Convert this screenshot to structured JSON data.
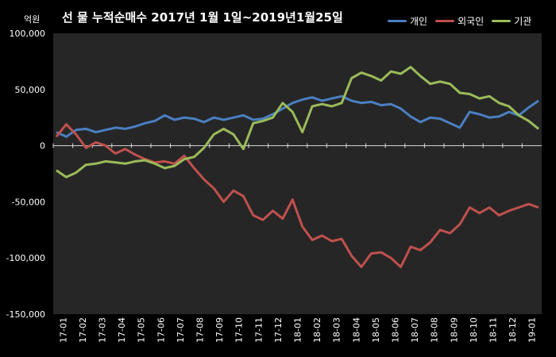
{
  "chart_data": {
    "type": "line",
    "title": "선 물 누적순매수 2017년 1월 1일~2019년1월25일",
    "unit": "억원",
    "ylim": [
      -150000,
      100000
    ],
    "yticks": [
      {
        "v": 100000,
        "label": "100,000"
      },
      {
        "v": 50000,
        "label": "50,000"
      },
      {
        "v": 0,
        "label": "0"
      },
      {
        "v": -50000,
        "label": "-50,000"
      },
      {
        "v": -100000,
        "label": "-100,000"
      },
      {
        "v": -150000,
        "label": "-150,000"
      }
    ],
    "xticks": [
      "17-01",
      "17-02",
      "17-03",
      "17-04",
      "17-05",
      "17-06",
      "17-07",
      "17-08",
      "17-09",
      "17-10",
      "17-11",
      "17-12",
      "18-01",
      "18-02",
      "18-03",
      "18-04",
      "18-05",
      "18-06",
      "18-07",
      "18-08",
      "18-09",
      "18-10",
      "18-11",
      "18-12",
      "19-01"
    ],
    "x": [
      "17-01a",
      "17-01b",
      "17-02a",
      "17-02b",
      "17-03a",
      "17-03b",
      "17-04a",
      "17-04b",
      "17-05a",
      "17-05b",
      "17-06a",
      "17-06b",
      "17-07a",
      "17-07b",
      "17-08a",
      "17-08b",
      "17-09a",
      "17-09b",
      "17-10a",
      "17-10b",
      "17-11a",
      "17-11b",
      "17-12a",
      "17-12b",
      "18-01a",
      "18-01b",
      "18-02a",
      "18-02b",
      "18-03a",
      "18-03b",
      "18-04a",
      "18-04b",
      "18-05a",
      "18-05b",
      "18-06a",
      "18-06b",
      "18-07a",
      "18-07b",
      "18-08a",
      "18-08b",
      "18-09a",
      "18-09b",
      "18-10a",
      "18-10b",
      "18-11a",
      "18-11b",
      "18-12a",
      "18-12b",
      "19-01a",
      "19-01b"
    ],
    "series": [
      {
        "name": "개인",
        "color": "#4a7fc1",
        "values": [
          12000,
          8000,
          14000,
          15000,
          12000,
          14000,
          16000,
          15000,
          17000,
          20000,
          22000,
          27000,
          23000,
          25000,
          24000,
          21000,
          25000,
          23000,
          25000,
          27000,
          23000,
          24000,
          28000,
          33000,
          38000,
          41000,
          43000,
          40000,
          42000,
          44000,
          40000,
          38000,
          39000,
          36000,
          37000,
          33000,
          26000,
          21000,
          25000,
          24000,
          20000,
          16000,
          30000,
          28000,
          25000,
          26000,
          30000,
          27000,
          34000,
          40000
        ]
      },
      {
        "name": "외국인",
        "color": "#c0504d",
        "values": [
          8000,
          19000,
          10000,
          -2000,
          3000,
          0,
          -7000,
          -3000,
          -8000,
          -12000,
          -15000,
          -14000,
          -16000,
          -9000,
          -20000,
          -30000,
          -38000,
          -50000,
          -40000,
          -45000,
          -62000,
          -66000,
          -58000,
          -65000,
          -48000,
          -72000,
          -84000,
          -80000,
          -85000,
          -83000,
          -98000,
          -108000,
          -96000,
          -95000,
          -100000,
          -108000,
          -90000,
          -93000,
          -86000,
          -75000,
          -78000,
          -70000,
          -55000,
          -60000,
          -55000,
          -62000,
          -58000,
          -55000,
          -52000,
          -55000
        ]
      },
      {
        "name": "기관",
        "color": "#9bbb59",
        "values": [
          -22000,
          -28000,
          -24000,
          -17000,
          -16000,
          -14000,
          -15000,
          -16000,
          -14000,
          -13000,
          -16000,
          -20000,
          -18000,
          -12000,
          -10000,
          -2000,
          10000,
          15000,
          10000,
          -3000,
          20000,
          22000,
          25000,
          38000,
          30000,
          12000,
          35000,
          37000,
          35000,
          38000,
          60000,
          65000,
          62000,
          58000,
          66000,
          64000,
          70000,
          62000,
          55000,
          57000,
          55000,
          47000,
          46000,
          42000,
          44000,
          38000,
          35000,
          27000,
          22000,
          15000
        ]
      }
    ]
  }
}
